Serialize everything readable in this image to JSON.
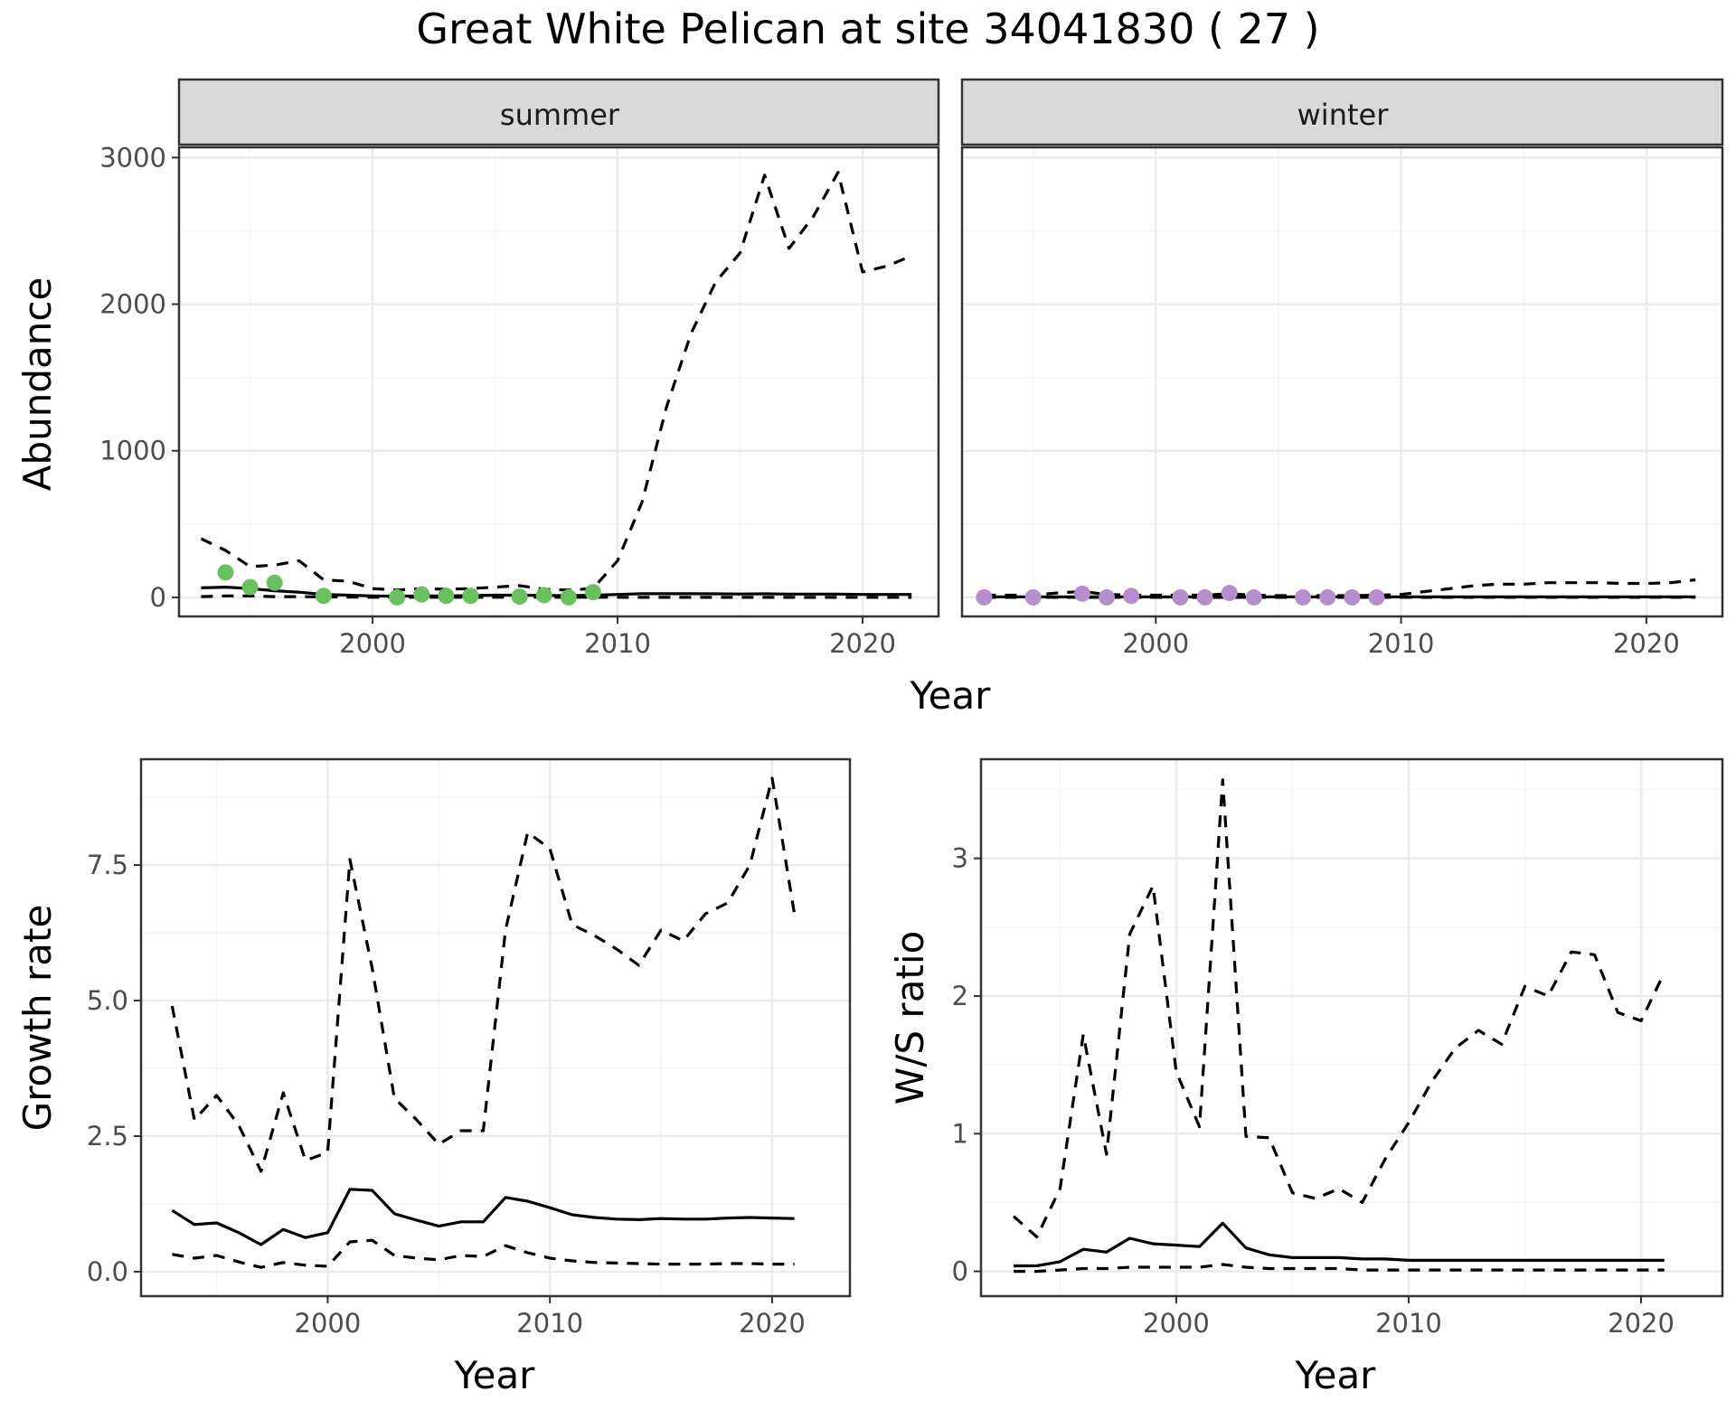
{
  "title": "Great White Pelican at site 34041830 ( 27 )",
  "colors": {
    "summer_points": "#6abf5e",
    "winter_points": "#b48fcb",
    "lines": "#000000",
    "strip_fill": "#d9d9d9",
    "grid_major": "#ebebeb",
    "grid_minor": "#f5f5f5"
  },
  "chart_data": [
    {
      "type": "line",
      "facet": "summer",
      "strip_label": "summer",
      "xlabel": "Year",
      "ylabel": "Abundance",
      "xlim": [
        1992.1,
        2023.1
      ],
      "ylim": [
        -130,
        3070
      ],
      "xticks": [
        2000,
        2010,
        2020
      ],
      "yticks": [
        0,
        1000,
        2000,
        3000
      ],
      "tick_labels_x": [
        "2000",
        "2010",
        "2020"
      ],
      "tick_labels_y": [
        "0",
        "1000",
        "2000",
        "3000"
      ],
      "show_x_labels": true,
      "show_y_labels": true,
      "grid": true,
      "series": [
        {
          "style": "dashed",
          "x": [
            1993,
            1994,
            1995,
            1996,
            1997,
            1998,
            1999,
            2000,
            2001,
            2002,
            2003,
            2004,
            2005,
            2006,
            2007,
            2008,
            2009,
            2010,
            2011,
            2012,
            2013,
            2014,
            2015,
            2016,
            2017,
            2018,
            2019,
            2020,
            2021,
            2022
          ],
          "y": [
            400,
            320,
            210,
            220,
            250,
            120,
            110,
            60,
            50,
            60,
            55,
            60,
            70,
            80,
            55,
            50,
            60,
            250,
            650,
            1300,
            1800,
            2150,
            2350,
            2880,
            2380,
            2600,
            2900,
            2220,
            2260,
            2330
          ]
        },
        {
          "style": "solid",
          "x": [
            1993,
            1994,
            1995,
            1996,
            1997,
            1998,
            1999,
            2000,
            2001,
            2002,
            2003,
            2004,
            2005,
            2006,
            2007,
            2008,
            2009,
            2010,
            2011,
            2012,
            2013,
            2014,
            2015,
            2016,
            2017,
            2018,
            2019,
            2020,
            2021,
            2022
          ],
          "y": [
            65,
            70,
            60,
            45,
            35,
            20,
            15,
            10,
            8,
            10,
            10,
            12,
            15,
            15,
            13,
            12,
            14,
            20,
            25,
            25,
            25,
            24,
            23,
            24,
            22,
            22,
            22,
            20,
            20,
            20
          ]
        },
        {
          "style": "dashed",
          "x": [
            1993,
            1994,
            1995,
            1996,
            1997,
            1998,
            1999,
            2000,
            2001,
            2002,
            2003,
            2004,
            2005,
            2006,
            2007,
            2008,
            2009,
            2010,
            2011,
            2012,
            2013,
            2014,
            2015,
            2016,
            2017,
            2018,
            2019,
            2020,
            2021,
            2022
          ],
          "y": [
            5,
            10,
            10,
            5,
            5,
            3,
            2,
            1,
            1,
            1,
            1,
            1,
            1,
            1,
            1,
            1,
            1,
            1,
            0,
            0,
            0,
            0,
            0,
            0,
            0,
            0,
            0,
            0,
            0,
            0
          ]
        }
      ],
      "points": {
        "x": [
          1994,
          1995,
          1996,
          1998,
          2001,
          2002,
          2003,
          2004,
          2006,
          2007,
          2008,
          2009
        ],
        "y": [
          170,
          70,
          100,
          10,
          0,
          20,
          10,
          10,
          5,
          15,
          0,
          35
        ]
      }
    },
    {
      "type": "line",
      "facet": "winter",
      "strip_label": "winter",
      "xlim": [
        1992.1,
        2023.1
      ],
      "ylim": [
        -130,
        3070
      ],
      "xticks": [
        2000,
        2010,
        2020
      ],
      "yticks": [
        0,
        1000,
        2000,
        3000
      ],
      "tick_labels_x": [
        "2000",
        "2010",
        "2020"
      ],
      "show_x_labels": true,
      "show_y_labels": false,
      "grid": true,
      "series": [
        {
          "style": "dashed",
          "x": [
            1993,
            1994,
            1995,
            1996,
            1997,
            1998,
            1999,
            2000,
            2001,
            2002,
            2003,
            2004,
            2005,
            2006,
            2007,
            2008,
            2009,
            2010,
            2011,
            2012,
            2013,
            2014,
            2015,
            2016,
            2017,
            2018,
            2019,
            2020,
            2021,
            2022
          ],
          "y": [
            15,
            15,
            15,
            30,
            40,
            20,
            15,
            15,
            15,
            15,
            25,
            15,
            12,
            12,
            12,
            12,
            15,
            20,
            40,
            60,
            80,
            90,
            90,
            100,
            100,
            100,
            95,
            95,
            100,
            120
          ]
        },
        {
          "style": "solid",
          "x": [
            1993,
            2022
          ],
          "y": [
            3,
            3
          ]
        },
        {
          "style": "dashed",
          "x": [
            1993,
            2022
          ],
          "y": [
            0,
            0
          ]
        }
      ],
      "points": {
        "x": [
          1993,
          1995,
          1997,
          1998,
          1999,
          2001,
          2002,
          2003,
          2004,
          2006,
          2007,
          2008,
          2009
        ],
        "y": [
          0,
          0,
          25,
          0,
          10,
          0,
          0,
          30,
          0,
          0,
          0,
          0,
          0
        ]
      }
    },
    {
      "type": "line",
      "xlabel": "Year",
      "ylabel": "Growth rate",
      "xlim": [
        1991.6,
        2023.5
      ],
      "ylim": [
        -0.45,
        9.45
      ],
      "xticks": [
        2000,
        2010,
        2020
      ],
      "yticks": [
        0,
        2.5,
        5,
        7.5
      ],
      "tick_labels_x": [
        "2000",
        "2010",
        "2020"
      ],
      "tick_labels_y": [
        "0.0",
        "2.5",
        "5.0",
        "7.5"
      ],
      "show_x_labels": true,
      "show_y_labels": true,
      "grid": true,
      "series": [
        {
          "style": "dashed",
          "x": [
            1993,
            1994,
            1995,
            1996,
            1997,
            1998,
            1999,
            2000,
            2001,
            2002,
            2003,
            2004,
            2005,
            2006,
            2007,
            2008,
            2009,
            2010,
            2011,
            2012,
            2013,
            2014,
            2015,
            2016,
            2017,
            2018,
            2019,
            2020,
            2021
          ],
          "y": [
            4.9,
            2.8,
            3.25,
            2.7,
            1.85,
            3.3,
            2.05,
            2.2,
            7.6,
            5.6,
            3.2,
            2.8,
            2.35,
            2.6,
            2.6,
            6.3,
            8.1,
            7.8,
            6.4,
            6.2,
            5.95,
            5.65,
            6.3,
            6.1,
            6.6,
            6.8,
            7.5,
            9.1,
            6.6
          ]
        },
        {
          "style": "solid",
          "x": [
            1993,
            1994,
            1995,
            1996,
            1997,
            1998,
            1999,
            2000,
            2001,
            2002,
            2003,
            2004,
            2005,
            2006,
            2007,
            2008,
            2009,
            2010,
            2011,
            2012,
            2013,
            2014,
            2015,
            2016,
            2017,
            2018,
            2019,
            2020,
            2021
          ],
          "y": [
            1.13,
            0.87,
            0.9,
            0.72,
            0.5,
            0.78,
            0.63,
            0.72,
            1.52,
            1.5,
            1.07,
            0.95,
            0.84,
            0.92,
            0.92,
            1.37,
            1.3,
            1.18,
            1.05,
            1.0,
            0.97,
            0.96,
            0.98,
            0.97,
            0.97,
            0.99,
            1.0,
            0.99,
            0.98
          ]
        },
        {
          "style": "dashed",
          "x": [
            1993,
            1994,
            1995,
            1996,
            1997,
            1998,
            1999,
            2000,
            2001,
            2002,
            2003,
            2004,
            2005,
            2006,
            2007,
            2008,
            2009,
            2010,
            2011,
            2012,
            2013,
            2014,
            2015,
            2016,
            2017,
            2018,
            2019,
            2020,
            2021
          ],
          "y": [
            0.32,
            0.25,
            0.3,
            0.18,
            0.08,
            0.17,
            0.12,
            0.1,
            0.55,
            0.58,
            0.3,
            0.25,
            0.22,
            0.3,
            0.28,
            0.48,
            0.35,
            0.25,
            0.2,
            0.17,
            0.16,
            0.15,
            0.14,
            0.14,
            0.14,
            0.15,
            0.15,
            0.14,
            0.14
          ]
        }
      ]
    },
    {
      "type": "line",
      "xlabel": "Year",
      "ylabel": "W/S ratio",
      "xlim": [
        1991.6,
        2023.5
      ],
      "ylim": [
        -0.18,
        3.72
      ],
      "xticks": [
        2000,
        2010,
        2020
      ],
      "yticks": [
        0,
        1,
        2,
        3
      ],
      "tick_labels_x": [
        "2000",
        "2010",
        "2020"
      ],
      "tick_labels_y": [
        "0",
        "1",
        "2",
        "3"
      ],
      "show_x_labels": true,
      "show_y_labels": true,
      "grid": true,
      "series": [
        {
          "style": "dashed",
          "x": [
            1993,
            1994,
            1995,
            1996,
            1997,
            1998,
            1999,
            2000,
            2001,
            2002,
            2003,
            2004,
            2005,
            2006,
            2007,
            2008,
            2009,
            2010,
            2011,
            2012,
            2013,
            2014,
            2015,
            2016,
            2017,
            2018,
            2019,
            2020,
            2021
          ],
          "y": [
            0.4,
            0.25,
            0.6,
            1.72,
            0.85,
            2.45,
            2.8,
            1.45,
            1.05,
            3.57,
            0.98,
            0.97,
            0.57,
            0.53,
            0.6,
            0.5,
            0.82,
            1.08,
            1.38,
            1.62,
            1.75,
            1.65,
            2.07,
            2.0,
            2.32,
            2.3,
            1.88,
            1.82,
            2.17
          ]
        },
        {
          "style": "solid",
          "x": [
            1993,
            1994,
            1995,
            1996,
            1997,
            1998,
            1999,
            2000,
            2001,
            2002,
            2003,
            2004,
            2005,
            2006,
            2007,
            2008,
            2009,
            2010,
            2011,
            2012,
            2013,
            2014,
            2015,
            2016,
            2017,
            2018,
            2019,
            2020,
            2021
          ],
          "y": [
            0.04,
            0.04,
            0.07,
            0.16,
            0.14,
            0.24,
            0.2,
            0.19,
            0.18,
            0.35,
            0.17,
            0.12,
            0.1,
            0.1,
            0.1,
            0.09,
            0.09,
            0.08,
            0.08,
            0.08,
            0.08,
            0.08,
            0.08,
            0.08,
            0.08,
            0.08,
            0.08,
            0.08,
            0.08
          ]
        },
        {
          "style": "dashed",
          "x": [
            1993,
            1994,
            1995,
            1996,
            1997,
            1998,
            1999,
            2000,
            2001,
            2002,
            2003,
            2004,
            2005,
            2006,
            2007,
            2008,
            2009,
            2010,
            2011,
            2012,
            2013,
            2014,
            2015,
            2016,
            2017,
            2018,
            2019,
            2020,
            2021
          ],
          "y": [
            0.0,
            0.0,
            0.01,
            0.02,
            0.02,
            0.03,
            0.03,
            0.03,
            0.03,
            0.05,
            0.03,
            0.02,
            0.02,
            0.02,
            0.02,
            0.01,
            0.01,
            0.01,
            0.01,
            0.01,
            0.01,
            0.01,
            0.01,
            0.01,
            0.01,
            0.01,
            0.01,
            0.01,
            0.01
          ]
        }
      ]
    }
  ]
}
